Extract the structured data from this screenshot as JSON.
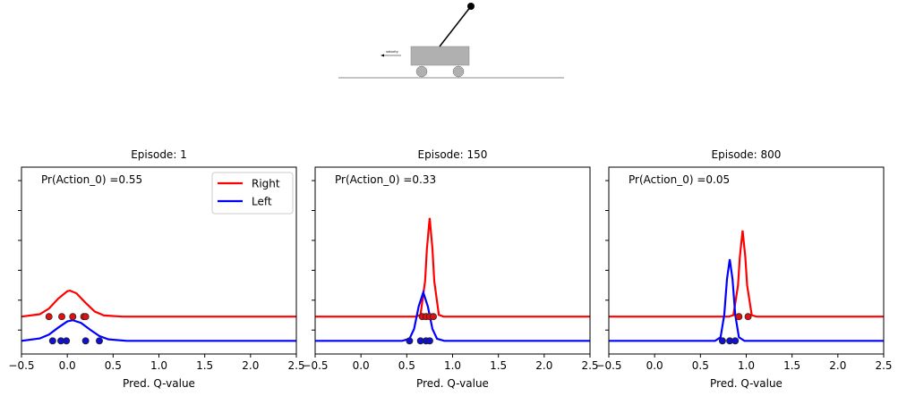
{
  "scene": {
    "velocity_label": "velocity"
  },
  "chart_data": [
    {
      "type": "density",
      "title": "Episode: 1",
      "annotation": "Pr(Action_0) =0.55",
      "x_label": "Pred. Q-value",
      "xlim": [
        -0.5,
        2.5
      ],
      "ylim": [
        -0.8,
        5.45
      ],
      "xticks": [
        {
          "value": -0.5,
          "label": "−0.5"
        },
        {
          "value": 0,
          "label": "0.0"
        },
        0.5,
        {
          "value": 1,
          "label": "1.0"
        },
        1.5,
        {
          "value": 2,
          "label": "2.0"
        },
        2.5
      ],
      "yticks": [
        0,
        1,
        2,
        3,
        4,
        5
      ],
      "legend": "upper right",
      "series": [
        {
          "name": "Right",
          "color": "#ff0000",
          "x": [
            -0.5,
            -0.3,
            -0.2,
            -0.1,
            0,
            0.03,
            0.1,
            0.2,
            0.3,
            0.4,
            0.6,
            2.5
          ],
          "values": [
            0.45,
            0.53,
            0.72,
            1.05,
            1.3,
            1.32,
            1.23,
            0.91,
            0.62,
            0.49,
            0.45,
            0.45
          ]
        },
        {
          "name": "Left",
          "color": "#0000ff",
          "x": [
            -0.5,
            -0.3,
            -0.2,
            -0.1,
            0,
            0.06,
            0.15,
            0.25,
            0.35,
            0.45,
            0.65,
            2.5
          ],
          "values": [
            -0.36,
            -0.28,
            -0.15,
            0.08,
            0.29,
            0.33,
            0.24,
            0.01,
            -0.2,
            -0.31,
            -0.36,
            -0.36
          ]
        }
      ],
      "samples": [
        {
          "color": "#dd1111",
          "x": [
            -0.2,
            -0.06,
            0.06,
            0.18,
            0.2
          ],
          "values": [
            0.45,
            0.45,
            0.45,
            0.45,
            0.45
          ]
        },
        {
          "color": "#1111cc",
          "x": [
            -0.16,
            -0.07,
            -0.01,
            0.2,
            0.35
          ],
          "values": [
            -0.36,
            -0.36,
            -0.36,
            -0.36,
            -0.36
          ]
        }
      ]
    },
    {
      "type": "density",
      "title": "Episode: 150",
      "annotation": "Pr(Action_0) =0.33",
      "x_label": "Pred. Q-value",
      "xlim": [
        -0.5,
        2.5
      ],
      "ylim": [
        -0.8,
        5.45
      ],
      "xticks": [
        {
          "value": -0.5,
          "label": "−0.5"
        },
        {
          "value": 0,
          "label": "0.0"
        },
        0.5,
        {
          "value": 1,
          "label": "1.0"
        },
        1.5,
        {
          "value": 2,
          "label": "2.0"
        },
        2.5
      ],
      "yticks": [
        0,
        1,
        2,
        3,
        4,
        5
      ],
      "series": [
        {
          "name": "Right",
          "color": "#ff0000",
          "x": [
            -0.5,
            0.6,
            0.65,
            0.7,
            0.72,
            0.75,
            0.78,
            0.8,
            0.85,
            0.9,
            2.5
          ],
          "values": [
            0.45,
            0.45,
            0.51,
            1.64,
            2.73,
            3.75,
            2.73,
            1.64,
            0.51,
            0.45,
            0.45
          ]
        },
        {
          "name": "Left",
          "color": "#0000ff",
          "x": [
            -0.5,
            0.45,
            0.53,
            0.58,
            0.63,
            0.68,
            0.73,
            0.78,
            0.83,
            0.91,
            2.5
          ],
          "values": [
            -0.36,
            -0.36,
            -0.29,
            0.04,
            0.79,
            1.26,
            0.79,
            0.04,
            -0.29,
            -0.36,
            -0.36
          ]
        }
      ],
      "samples": [
        {
          "color": "#dd1111",
          "x": [
            0.67,
            0.71,
            0.75,
            0.79
          ],
          "values": [
            0.45,
            0.45,
            0.45,
            0.45
          ]
        },
        {
          "color": "#1111cc",
          "x": [
            0.53,
            0.65,
            0.71,
            0.75
          ],
          "values": [
            -0.36,
            -0.36,
            -0.36,
            -0.36
          ]
        }
      ]
    },
    {
      "type": "density",
      "title": "Episode: 800",
      "annotation": "Pr(Action_0) =0.05",
      "x_label": "Pred. Q-value",
      "xlim": [
        -0.5,
        2.5
      ],
      "ylim": [
        -0.8,
        5.45
      ],
      "xticks": [
        {
          "value": -0.5,
          "label": "−0.5"
        },
        {
          "value": 0,
          "label": "0.0"
        },
        0.5,
        {
          "value": 1,
          "label": "1.0"
        },
        1.5,
        {
          "value": 2,
          "label": "2.0"
        },
        2.5
      ],
      "yticks": [
        0,
        1,
        2,
        3,
        4,
        5
      ],
      "series": [
        {
          "name": "Right",
          "color": "#ff0000",
          "x": [
            -0.5,
            0.81,
            0.86,
            0.91,
            0.93,
            0.96,
            0.99,
            1.01,
            1.06,
            1.11,
            2.5
          ],
          "values": [
            0.45,
            0.45,
            0.5,
            1.49,
            2.44,
            3.33,
            2.44,
            1.49,
            0.5,
            0.45,
            0.45
          ]
        },
        {
          "name": "Left",
          "color": "#0000ff",
          "x": [
            -0.5,
            0.66,
            0.72,
            0.76,
            0.79,
            0.82,
            0.85,
            0.88,
            0.92,
            0.98,
            2.5
          ],
          "values": [
            -0.36,
            -0.36,
            -0.24,
            0.51,
            1.71,
            2.37,
            1.71,
            0.51,
            -0.24,
            -0.36,
            -0.36
          ]
        }
      ],
      "samples": [
        {
          "color": "#dd1111",
          "x": [
            0.92,
            1.02
          ],
          "values": [
            0.45,
            0.45
          ]
        },
        {
          "color": "#1111cc",
          "x": [
            0.74,
            0.82,
            0.88
          ],
          "values": [
            -0.36,
            -0.36,
            -0.36
          ]
        }
      ]
    }
  ]
}
